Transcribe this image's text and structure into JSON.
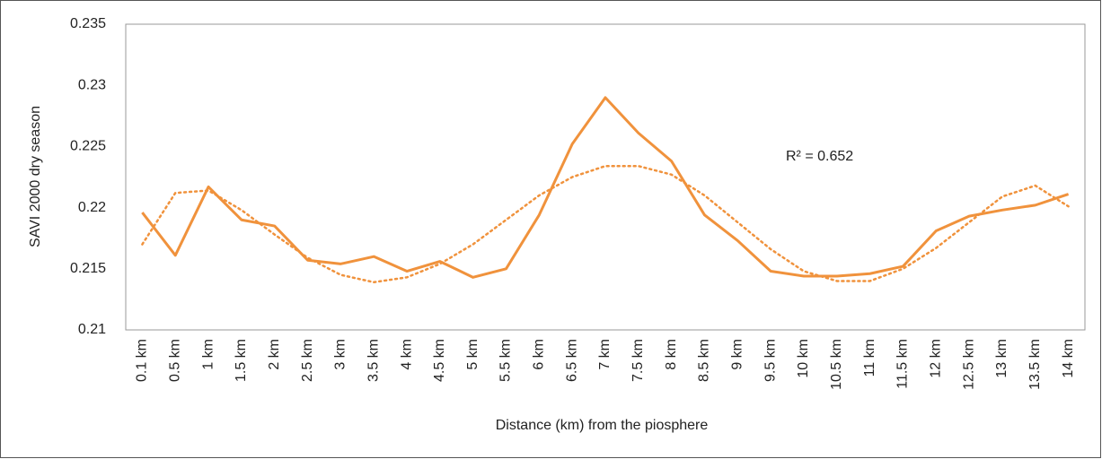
{
  "chart_data": {
    "type": "line",
    "x_label": "Distance (km) from the piosphere",
    "y_label": "SAVI 2000 dry season",
    "annotation": "R² = 0.652",
    "categories": [
      "0.1 km",
      "0.5 km",
      "1 km",
      "1.5 km",
      "2 km",
      "2.5 km",
      "3 km",
      "3.5 km",
      "4 km",
      "4.5 km",
      "5 km",
      "5.5 km",
      "6 km",
      "6.5 km",
      "7 km",
      "7.5 km",
      "8 km",
      "8.5 km",
      "9 km",
      "9.5 km",
      "10 km",
      "10.5 km",
      "11 km",
      "11.5 km",
      "12 km",
      "12.5 km",
      "13 km",
      "13.5 km",
      "14 km"
    ],
    "series": [
      {
        "color": "#f0923c",
        "values": [
          0.2196,
          0.2161,
          0.2217,
          0.219,
          0.2185,
          0.2157,
          0.2154,
          0.216,
          0.2148,
          0.2156,
          0.2143,
          0.215,
          0.2194,
          0.2252,
          0.229,
          0.2261,
          0.2238,
          0.2194,
          0.2173,
          0.2148,
          0.2144,
          0.2144,
          0.2146,
          0.2152,
          0.2181,
          0.2193,
          0.2198,
          0.2202,
          0.2211
        ]
      }
    ],
    "trendline": {
      "color": "#f0923c",
      "style": "dotted",
      "values": [
        0.217,
        0.2212,
        0.2214,
        0.2198,
        0.2178,
        0.2159,
        0.2145,
        0.2139,
        0.2143,
        0.2154,
        0.217,
        0.219,
        0.221,
        0.2225,
        0.2234,
        0.2234,
        0.2227,
        0.221,
        0.2188,
        0.2166,
        0.2148,
        0.214,
        0.214,
        0.215,
        0.2167,
        0.2188,
        0.2209,
        0.2218,
        0.2201
      ]
    },
    "ylim": [
      0.21,
      0.235
    ],
    "yticks": [
      0.21,
      0.215,
      0.22,
      0.225,
      0.23,
      0.235
    ],
    "grid": false
  }
}
